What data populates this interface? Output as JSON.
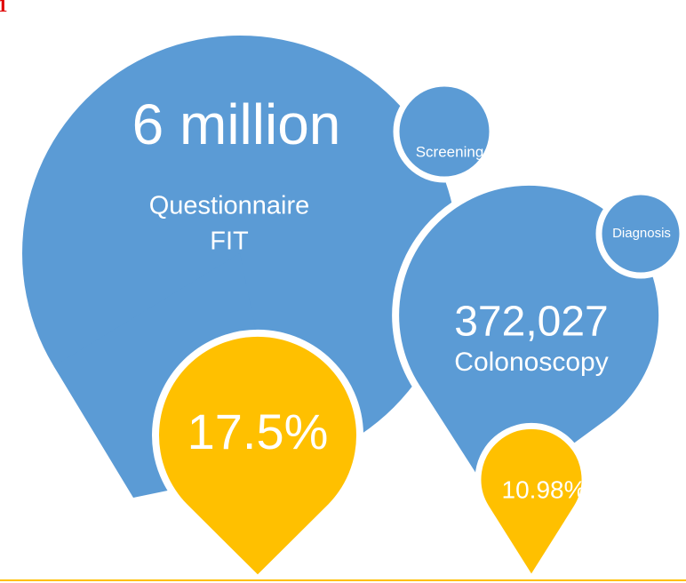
{
  "corner_mark": "1",
  "stages": [
    {
      "count": "6 million",
      "methods": [
        "Questionnaire",
        "FIT"
      ],
      "stage": "Screening",
      "rate": "17.5%"
    },
    {
      "count": "372,027",
      "methods": [
        "Colonoscopy"
      ],
      "stage": "Diagnosis",
      "rate": "10.98%"
    }
  ]
}
